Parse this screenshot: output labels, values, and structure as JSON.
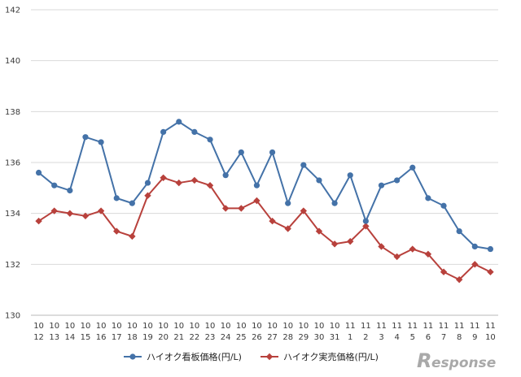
{
  "chart_data": {
    "type": "line",
    "title": "",
    "xlabel": "",
    "ylabel": "",
    "ylim": [
      130,
      142
    ],
    "yticks": [
      130,
      132,
      134,
      136,
      138,
      140,
      142
    ],
    "grid": true,
    "legend_position": "bottom",
    "categories": [
      {
        "month": "10",
        "day": "12"
      },
      {
        "month": "10",
        "day": "13"
      },
      {
        "month": "10",
        "day": "14"
      },
      {
        "month": "10",
        "day": "15"
      },
      {
        "month": "10",
        "day": "16"
      },
      {
        "month": "10",
        "day": "17"
      },
      {
        "month": "10",
        "day": "18"
      },
      {
        "month": "10",
        "day": "19"
      },
      {
        "month": "10",
        "day": "20"
      },
      {
        "month": "10",
        "day": "21"
      },
      {
        "month": "10",
        "day": "22"
      },
      {
        "month": "10",
        "day": "23"
      },
      {
        "month": "10",
        "day": "24"
      },
      {
        "month": "10",
        "day": "25"
      },
      {
        "month": "10",
        "day": "26"
      },
      {
        "month": "10",
        "day": "27"
      },
      {
        "month": "10",
        "day": "28"
      },
      {
        "month": "10",
        "day": "29"
      },
      {
        "month": "10",
        "day": "30"
      },
      {
        "month": "10",
        "day": "31"
      },
      {
        "month": "11",
        "day": "1"
      },
      {
        "month": "11",
        "day": "2"
      },
      {
        "month": "11",
        "day": "3"
      },
      {
        "month": "11",
        "day": "4"
      },
      {
        "month": "11",
        "day": "5"
      },
      {
        "month": "11",
        "day": "6"
      },
      {
        "month": "11",
        "day": "7"
      },
      {
        "month": "11",
        "day": "8"
      },
      {
        "month": "11",
        "day": "9"
      },
      {
        "month": "11",
        "day": "10"
      }
    ],
    "series": [
      {
        "name": "ハイオク看板価格(円/L)",
        "color": "#4472a8",
        "marker": "circle",
        "values": [
          135.6,
          135.1,
          134.9,
          137.0,
          136.8,
          134.6,
          134.4,
          135.2,
          137.2,
          137.6,
          137.2,
          136.9,
          135.5,
          136.4,
          135.1,
          136.4,
          134.4,
          135.9,
          135.3,
          134.4,
          135.5,
          133.7,
          135.1,
          135.3,
          135.8,
          134.6,
          134.3,
          133.3,
          132.7,
          132.6
        ]
      },
      {
        "name": "ハイオク実売価格(円/L)",
        "color": "#b8413c",
        "marker": "diamond",
        "values": [
          133.7,
          134.1,
          134.0,
          133.9,
          134.1,
          133.3,
          133.1,
          134.7,
          135.4,
          135.2,
          135.3,
          135.1,
          134.2,
          134.2,
          134.5,
          133.7,
          133.4,
          134.1,
          133.3,
          132.8,
          132.9,
          133.5,
          132.7,
          132.3,
          132.6,
          132.4,
          131.7,
          131.4,
          132.0,
          131.7
        ]
      }
    ]
  },
  "watermark": {
    "text": "esponse",
    "initial": "R",
    "color": "#a9a9a9"
  }
}
